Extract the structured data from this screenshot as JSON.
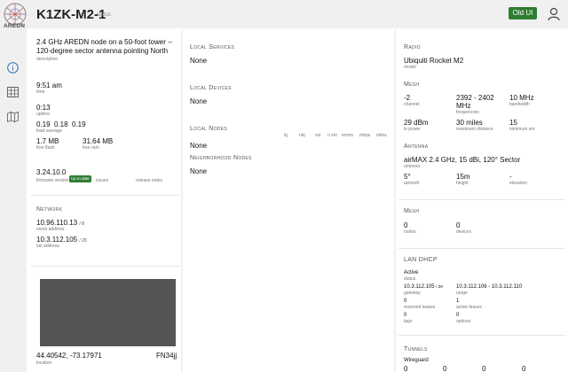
{
  "header": {
    "logo_text": "AREDN",
    "node_name": "K1ZK-M2-1",
    "status_label": "status",
    "old_ui_label": "Old UI"
  },
  "colors": {
    "accent": "#2e7d32",
    "background": "#f0f0f0",
    "map": "#555555"
  },
  "rail": {
    "icons": [
      "info-icon",
      "grid-icon",
      "map-icon"
    ]
  },
  "overview": {
    "description": "2.4 GHz AREDN node on a 50-foot tower -- 120-degree sector antenna pointing North",
    "description_label": "description",
    "time": "9:51 am",
    "time_label": "time",
    "uptime": "0:13",
    "uptime_label": "uptime",
    "load": [
      "0.19",
      "0.18",
      "0.19"
    ],
    "load_label": "load average",
    "free_flash": "1.7 MB",
    "free_flash_label": "free flash",
    "free_ram": "31.64 MB",
    "free_ram_label": "free ram",
    "firmware": "3.24.10.0",
    "firmware_badge": "Up to date",
    "firmware_label": "firmware version",
    "issues_label": "issues",
    "release_notes_label": "release notes"
  },
  "network": {
    "title": "Network",
    "mesh_ip": "10.96.110.13",
    "mesh_cidr": "/ 8",
    "mesh_label": "mesh address",
    "lan_ip": "10.3.112.105",
    "lan_cidr": "/ 29",
    "lan_label": "lan address"
  },
  "location": {
    "coords": "44.40542, -73.17971",
    "grid": "FN34jj",
    "label": "location"
  },
  "services": {
    "local_services_title": "Local Services",
    "local_services_value": "None",
    "local_devices_title": "Local Devices",
    "local_devices_value": "None",
    "local_nodes_title": "Local Nodes",
    "local_nodes_value": "None",
    "local_nodes_columns": [
      "lq",
      "nlq",
      "snr",
      "n snr",
      "errors",
      "mbps",
      "miles"
    ],
    "neighborhood_title": "Neighborhood Nodes",
    "neighborhood_value": "None"
  },
  "radio": {
    "title": "Radio",
    "model": "Ubiquiti Rocket M2",
    "model_label": "model"
  },
  "mesh_radio": {
    "title": "Mesh",
    "channel": "-2",
    "channel_label": "channel",
    "freq_line1": "2392 - 2402",
    "freq_line2": "MHz",
    "freq_label": "frequencies",
    "bandwidth": "10 MHz",
    "bandwidth_label": "bandwidth",
    "tx_power": "29 dBm",
    "tx_power_label": "tx power",
    "max_distance": "30 miles",
    "max_distance_label": "maximum distance",
    "min_snr": "15",
    "min_snr_label": "minimum snr"
  },
  "antenna": {
    "title": "Antenna",
    "name": "airMAX 2.4 GHz, 15 dBi, 120° Sector",
    "name_label": "antenna",
    "azimuth": "5°",
    "azimuth_label": "azimuth",
    "height": "15m",
    "height_label": "height",
    "elevation": "-",
    "elevation_label": "elevation"
  },
  "mesh_counts": {
    "title": "Mesh",
    "nodes": "0",
    "nodes_label": "nodes",
    "devices": "0",
    "devices_label": "devices"
  },
  "lan_dhcp": {
    "title": "LAN DHCP",
    "status": "Active",
    "status_label": "status",
    "gateway": "10.3.112.105",
    "gateway_cidr": "/ 29",
    "gateway_label": "gateway",
    "range": "10.3.112.106 - 10.3.112.110",
    "range_label": "range",
    "reserved": "0",
    "reserved_label": "reserved leases",
    "active": "1",
    "active_label": "active leases",
    "tags": "0",
    "tags_label": "tags",
    "options": "0",
    "options_label": "options"
  },
  "tunnels": {
    "title": "Tunnels",
    "wireguard_label": "Wireguard",
    "values": [
      "0",
      "0",
      "0",
      "0"
    ]
  }
}
